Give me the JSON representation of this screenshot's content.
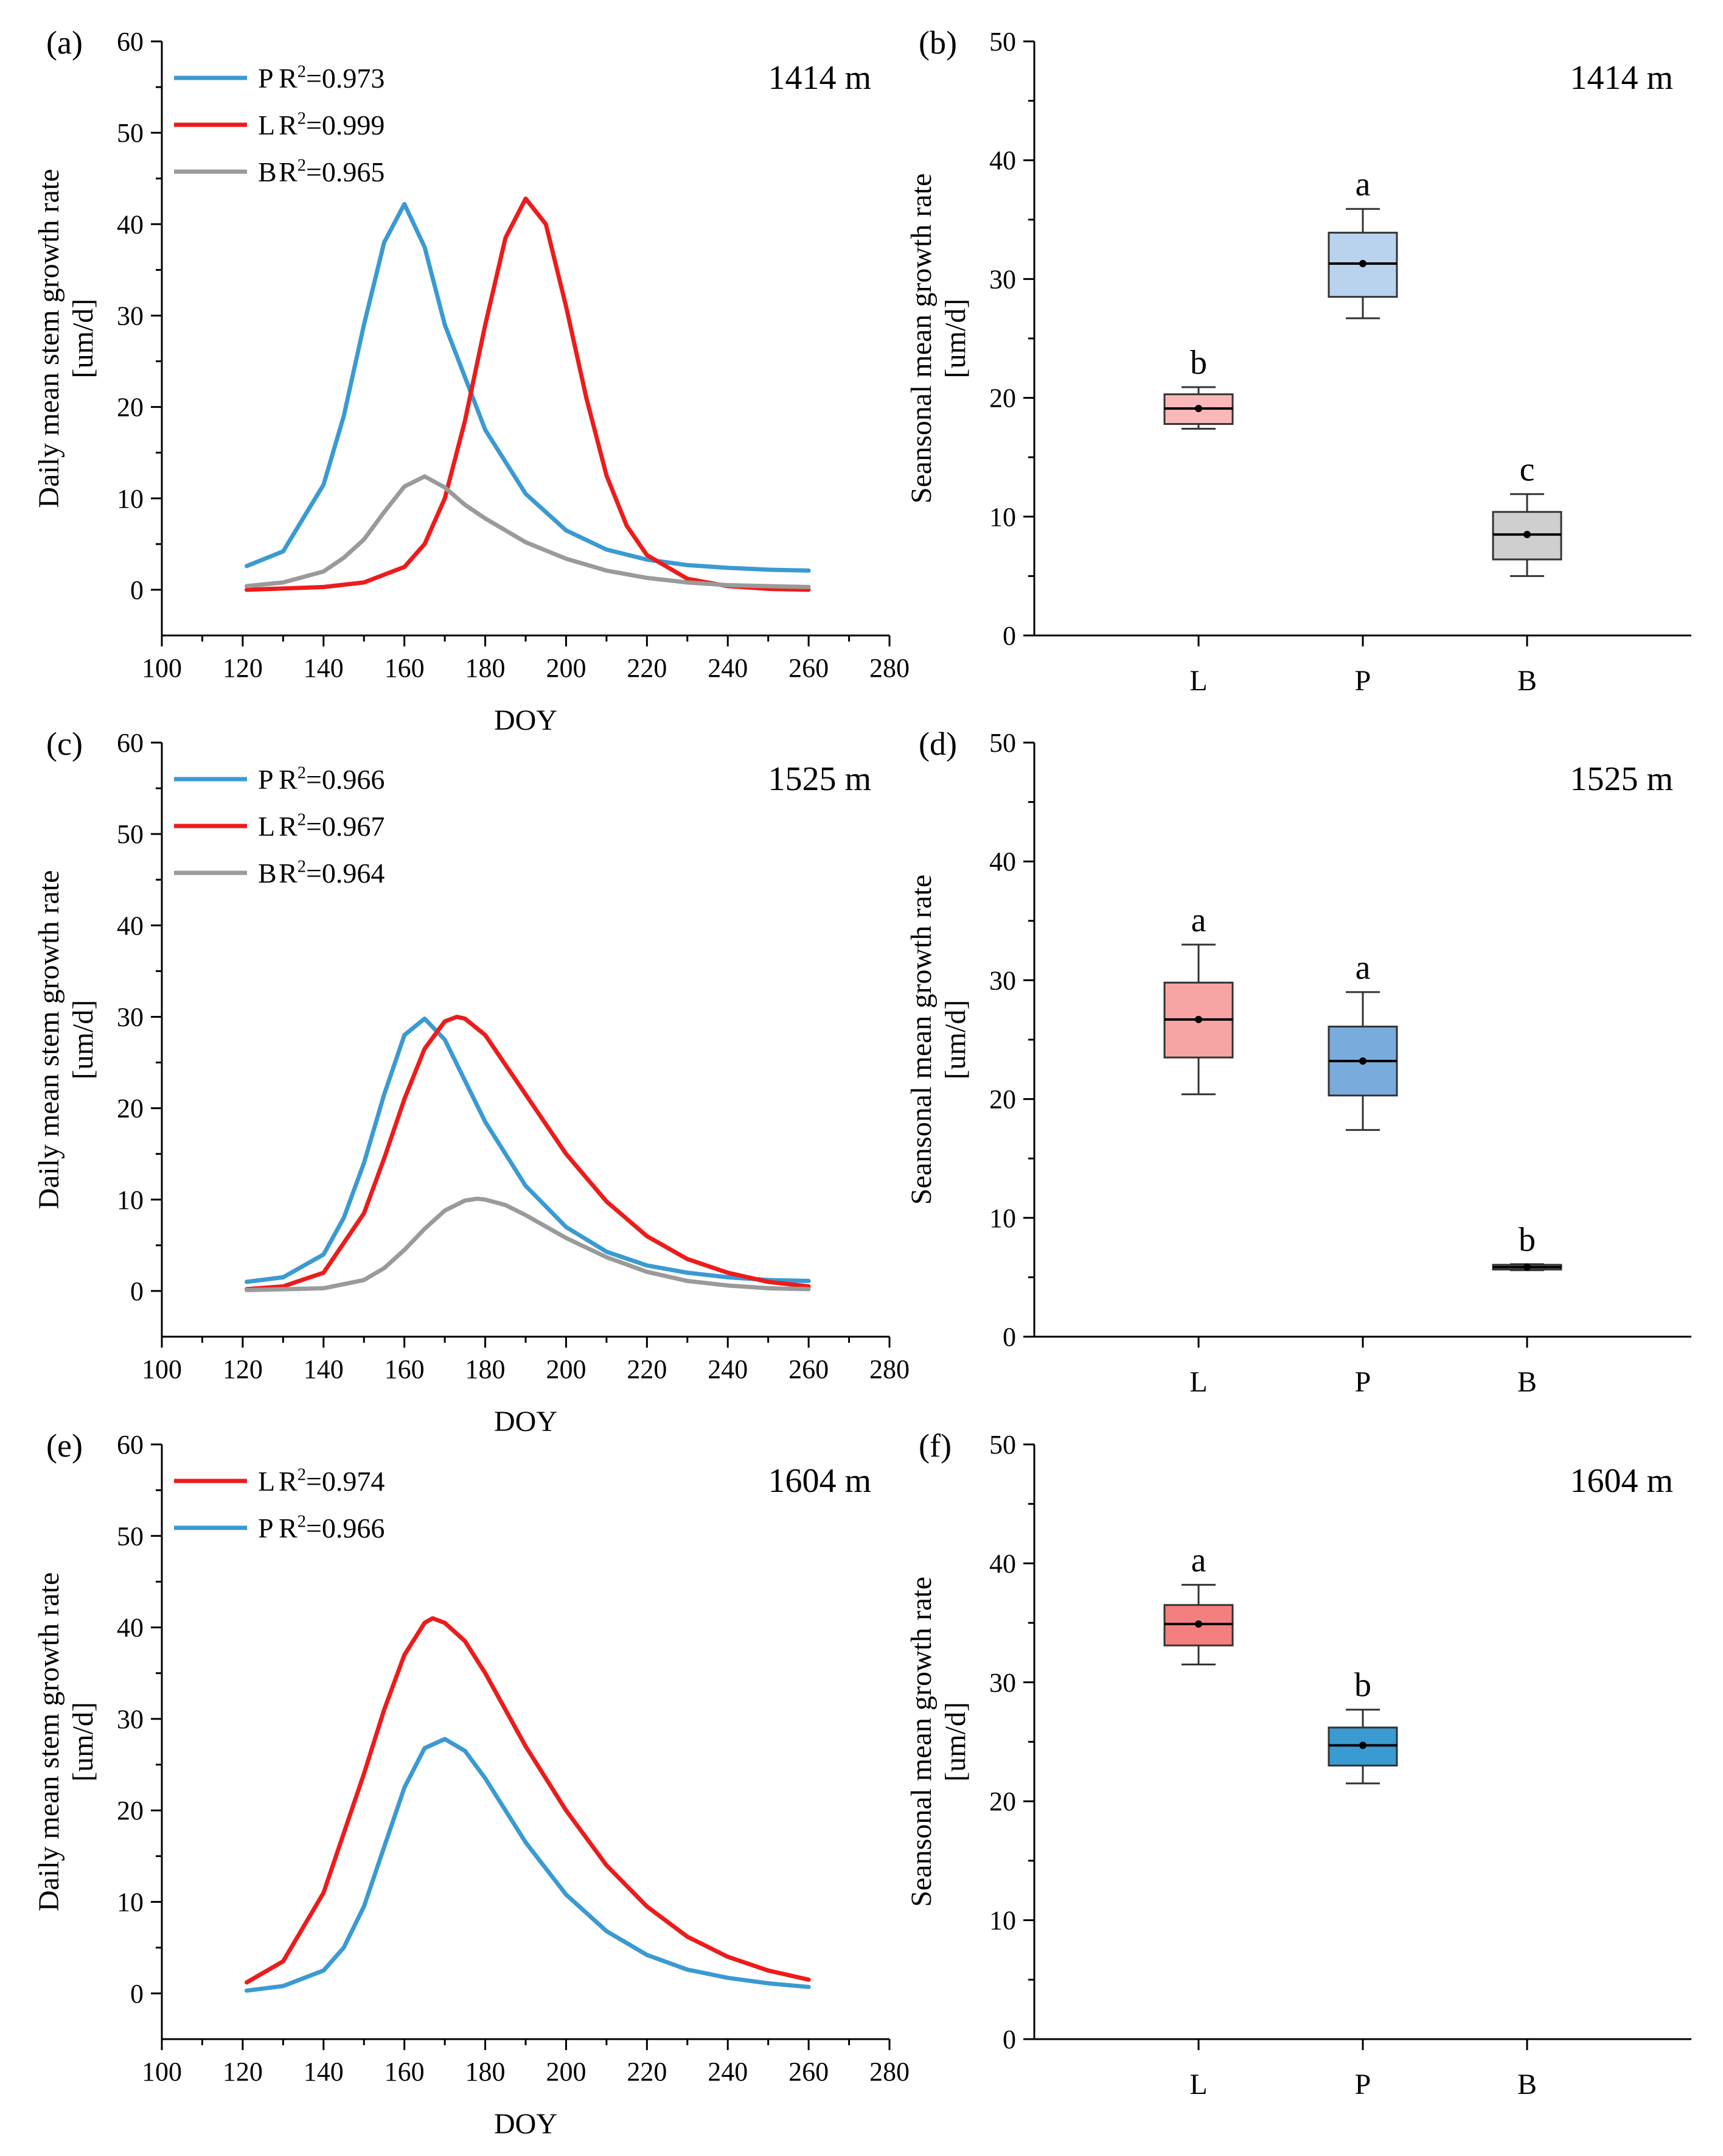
{
  "colors": {
    "P": "#3a9ad2",
    "L": "#ee1b1b",
    "B": "#9a9a9a",
    "axis": "#000000"
  },
  "chart_data": [
    {
      "panel": "(a)",
      "type": "line",
      "site": "1414 m",
      "xlabel": "DOY",
      "ylabel": [
        "Daily mean stem growth rate",
        "[um/d]"
      ],
      "xlim": [
        100,
        280
      ],
      "ylim": [
        -5,
        60
      ],
      "xticks": [
        100,
        120,
        140,
        160,
        180,
        200,
        220,
        240,
        260,
        280
      ],
      "yticks": [
        0,
        10,
        20,
        30,
        40,
        50,
        60
      ],
      "series": [
        {
          "key": "P",
          "name": "P",
          "r2": "R2=0.973",
          "x": [
            121,
            130,
            140,
            145,
            150,
            155,
            160,
            165,
            170,
            180,
            190,
            200,
            210,
            220,
            230,
            240,
            250,
            260
          ],
          "y": [
            2.6,
            4.2,
            11.5,
            19,
            29,
            38,
            42.2,
            37.5,
            29,
            17.5,
            10.5,
            6.5,
            4.4,
            3.3,
            2.7,
            2.4,
            2.2,
            2.1
          ]
        },
        {
          "key": "L",
          "name": "L",
          "r2": "R2=0.999",
          "x": [
            121,
            140,
            150,
            160,
            165,
            170,
            175,
            180,
            185,
            190,
            195,
            200,
            205,
            210,
            215,
            220,
            230,
            240,
            250,
            260
          ],
          "y": [
            0,
            0.3,
            0.8,
            2.5,
            5,
            10,
            18.5,
            29,
            38.5,
            42.8,
            40,
            31,
            21,
            12.5,
            7,
            3.8,
            1.2,
            0.4,
            0.1,
            0
          ]
        },
        {
          "key": "B",
          "name": "B",
          "r2": "R2=0.965",
          "x": [
            121,
            130,
            140,
            145,
            150,
            155,
            160,
            165,
            170,
            175,
            180,
            190,
            200,
            210,
            220,
            230,
            240,
            250,
            260
          ],
          "y": [
            0.4,
            0.8,
            2,
            3.5,
            5.5,
            8.5,
            11.3,
            12.4,
            11.2,
            9.3,
            7.8,
            5.2,
            3.4,
            2.1,
            1.3,
            0.8,
            0.5,
            0.4,
            0.3
          ]
        }
      ]
    },
    {
      "panel": "(b)",
      "type": "box",
      "site": "1414 m",
      "ylabel": [
        "Seansonal mean growth rate",
        "[um/d]"
      ],
      "ylim": [
        0,
        50
      ],
      "yticks": [
        0,
        10,
        20,
        30,
        40,
        50
      ],
      "boxes": [
        {
          "key": "L",
          "label": "L",
          "min": 17.4,
          "q1": 17.8,
          "median": 19.1,
          "mean": 19.1,
          "q3": 20.3,
          "max": 20.9,
          "letter": "b",
          "fill": "#fbb8b8"
        },
        {
          "key": "P",
          "label": "P",
          "min": 26.7,
          "q1": 28.5,
          "median": 31.3,
          "mean": 31.3,
          "q3": 33.9,
          "max": 35.9,
          "letter": "a",
          "fill": "#b9d3ee"
        },
        {
          "key": "B",
          "label": "B",
          "min": 5.0,
          "q1": 6.4,
          "median": 8.5,
          "mean": 8.5,
          "q3": 10.4,
          "max": 11.9,
          "letter": "c",
          "fill": "#cfcfcf"
        }
      ]
    },
    {
      "panel": "(c)",
      "type": "line",
      "site": "1525 m",
      "xlabel": "DOY",
      "ylabel": [
        "Daily mean stem growth rate",
        "[um/d]"
      ],
      "xlim": [
        100,
        280
      ],
      "ylim": [
        -5,
        60
      ],
      "xticks": [
        100,
        120,
        140,
        160,
        180,
        200,
        220,
        240,
        260,
        280
      ],
      "yticks": [
        0,
        10,
        20,
        30,
        40,
        50,
        60
      ],
      "series": [
        {
          "key": "P",
          "name": "P",
          "r2": "R2=0.966",
          "x": [
            121,
            130,
            140,
            145,
            150,
            155,
            160,
            165,
            170,
            175,
            180,
            190,
            200,
            210,
            220,
            230,
            240,
            250,
            260
          ],
          "y": [
            1,
            1.5,
            4,
            8,
            14,
            21.5,
            28,
            29.8,
            27.5,
            23,
            18.5,
            11.5,
            7,
            4.3,
            2.8,
            2,
            1.5,
            1.2,
            1.1
          ]
        },
        {
          "key": "L",
          "name": "L",
          "r2": "R2=0.967",
          "x": [
            121,
            130,
            140,
            150,
            155,
            160,
            165,
            170,
            173,
            175,
            180,
            190,
            200,
            210,
            220,
            230,
            240,
            250,
            260
          ],
          "y": [
            0.2,
            0.5,
            2,
            8.5,
            14.5,
            21,
            26.5,
            29.5,
            30,
            29.8,
            28,
            21.5,
            15,
            9.8,
            6,
            3.5,
            2,
            1,
            0.5
          ]
        },
        {
          "key": "B",
          "name": "B",
          "r2": "R2=0.964",
          "x": [
            121,
            140,
            150,
            155,
            160,
            165,
            170,
            175,
            178,
            180,
            185,
            190,
            200,
            210,
            220,
            230,
            240,
            250,
            260
          ],
          "y": [
            0.1,
            0.3,
            1.2,
            2.5,
            4.5,
            6.8,
            8.8,
            9.9,
            10.1,
            10,
            9.4,
            8.3,
            5.8,
            3.7,
            2.1,
            1.1,
            0.6,
            0.3,
            0.2
          ]
        }
      ]
    },
    {
      "panel": "(d)",
      "type": "box",
      "site": "1525 m",
      "ylabel": [
        "Seansonal mean growth rate",
        "[um/d]"
      ],
      "ylim": [
        0,
        50
      ],
      "yticks": [
        0,
        10,
        20,
        30,
        40,
        50
      ],
      "boxes": [
        {
          "key": "L",
          "label": "L",
          "min": 20.4,
          "q1": 23.5,
          "median": 26.7,
          "mean": 26.7,
          "q3": 29.8,
          "max": 33.0,
          "letter": "a",
          "fill": "#f7a4a4"
        },
        {
          "key": "P",
          "label": "P",
          "min": 17.4,
          "q1": 20.3,
          "median": 23.2,
          "mean": 23.2,
          "q3": 26.1,
          "max": 29.0,
          "letter": "a",
          "fill": "#79acdc"
        },
        {
          "key": "B",
          "label": "B",
          "min": 5.6,
          "q1": 5.65,
          "median": 5.85,
          "mean": 5.85,
          "q3": 6.05,
          "max": 6.1,
          "letter": "b",
          "fill": "#9a9a9a"
        }
      ]
    },
    {
      "panel": "(e)",
      "type": "line",
      "site": "1604 m",
      "xlabel": "DOY",
      "ylabel": [
        "Daily mean stem growth rate",
        "[um/d]"
      ],
      "xlim": [
        100,
        280
      ],
      "ylim": [
        -5,
        60
      ],
      "xticks": [
        100,
        120,
        140,
        160,
        180,
        200,
        220,
        240,
        260,
        280
      ],
      "yticks": [
        0,
        10,
        20,
        30,
        40,
        50,
        60
      ],
      "series": [
        {
          "key": "L",
          "name": "L",
          "r2": "R2=0.974",
          "x": [
            121,
            130,
            140,
            150,
            155,
            160,
            165,
            167,
            170,
            175,
            180,
            190,
            200,
            210,
            220,
            230,
            240,
            250,
            260
          ],
          "y": [
            1.2,
            3.5,
            11,
            24,
            31,
            37,
            40.5,
            41,
            40.5,
            38.5,
            35,
            27,
            20,
            14,
            9.5,
            6.2,
            4,
            2.5,
            1.5
          ]
        },
        {
          "key": "L",
          "name": "P",
          "r2": "R2=0.966",
          "key2": "P",
          "x": [
            121,
            130,
            140,
            145,
            150,
            155,
            160,
            165,
            170,
            175,
            180,
            190,
            200,
            210,
            220,
            230,
            240,
            250,
            260
          ],
          "y": [
            0.3,
            0.8,
            2.5,
            5,
            9.5,
            16,
            22.5,
            26.8,
            27.8,
            26.5,
            23.5,
            16.5,
            10.8,
            6.8,
            4.2,
            2.6,
            1.7,
            1.1,
            0.7
          ]
        }
      ]
    },
    {
      "panel": "(f)",
      "type": "box",
      "site": "1604 m",
      "ylabel": [
        "Seansonal mean growth rate",
        "[um/d]"
      ],
      "ylim": [
        0,
        50
      ],
      "yticks": [
        0,
        10,
        20,
        30,
        40,
        50
      ],
      "boxes": [
        {
          "key": "L",
          "label": "L",
          "min": 31.5,
          "q1": 33.1,
          "median": 34.9,
          "mean": 34.9,
          "q3": 36.5,
          "max": 38.2,
          "letter": "a",
          "fill": "#f47f7f"
        },
        {
          "key": "P",
          "label": "P",
          "min": 21.5,
          "q1": 23.0,
          "median": 24.7,
          "mean": 24.7,
          "q3": 26.2,
          "max": 27.7,
          "letter": "b",
          "fill": "#3a9ad2"
        }
      ],
      "categories": [
        "L",
        "P",
        "B"
      ]
    }
  ]
}
